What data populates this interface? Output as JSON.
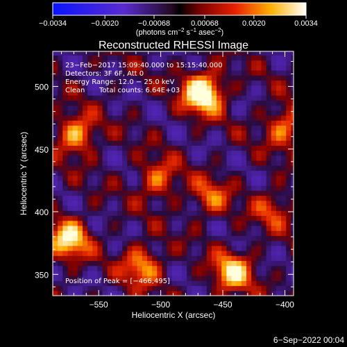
{
  "chart_data": {
    "type": "heatmap",
    "title": "Reconstructed RHESSI Image",
    "xlabel": "Heliocentric X (arcsec)",
    "ylabel": "Heliocentric Y (arcsec)",
    "xlim": [
      -587,
      -393
    ],
    "ylim": [
      333,
      528
    ],
    "x_ticks": [
      -550,
      -500,
      -450,
      -400
    ],
    "x_tick_labels": [
      "−550",
      "−500",
      "−450",
      "−400"
    ],
    "y_ticks": [
      350,
      400,
      450,
      500
    ],
    "y_tick_labels": [
      "350",
      "400",
      "450",
      "500"
    ],
    "colorbar": {
      "min": -0.0034,
      "max": 0.0034,
      "tick_values": [
        -0.0034,
        -0.002,
        -0.00068,
        0.00068,
        0.002,
        0.0034
      ],
      "tick_labels": [
        "−0.0034",
        "−0.0020",
        "−0.00068",
        "0.00068",
        "0.0020",
        "0.0034"
      ],
      "unit_main": "(photons cm",
      "unit_exp1": "−2",
      "unit_mid": " s",
      "unit_exp2": "−1",
      "unit_mid2": " asec",
      "unit_exp3": "−2",
      "unit_end": ")"
    },
    "annotations": {
      "line1": "23−Feb−2017 15:09:40.000 to 15:15:40.000",
      "line2": "Detectors: 3F 6F, Att 0",
      "line3": "Energy Range: 12.0 − 25.0 keV",
      "line4a": "Clean",
      "line4b": "Total counts: 6.64E+03",
      "peak": "Position of Peak = [−466,495]"
    },
    "peak_position": [
      -466,
      495
    ],
    "sources": [
      {
        "x": -466,
        "y": 495,
        "intensity": 1.0
      },
      {
        "x": -568,
        "y": 462,
        "intensity": 0.6
      },
      {
        "x": -574,
        "y": 378,
        "intensity": 0.75
      },
      {
        "x": -515,
        "y": 357,
        "intensity": 0.55
      },
      {
        "x": -442,
        "y": 352,
        "intensity": 0.7
      },
      {
        "x": -502,
        "y": 426,
        "intensity": 0.45
      },
      {
        "x": -460,
        "y": 412,
        "intensity": 0.4
      },
      {
        "x": -400,
        "y": 468,
        "intensity": 0.5
      },
      {
        "x": -410,
        "y": 402,
        "intensity": 0.35
      }
    ]
  },
  "footer": {
    "date": "6−Sep−2022 00:04"
  }
}
